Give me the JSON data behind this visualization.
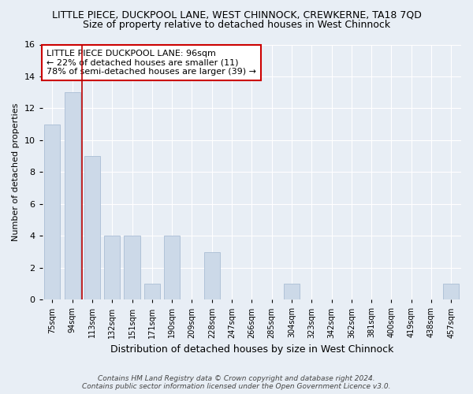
{
  "title": "LITTLE PIECE, DUCKPOOL LANE, WEST CHINNOCK, CREWKERNE, TA18 7QD",
  "subtitle": "Size of property relative to detached houses in West Chinnock",
  "xlabel": "Distribution of detached houses by size in West Chinnock",
  "ylabel": "Number of detached properties",
  "categories": [
    "75sqm",
    "94sqm",
    "113sqm",
    "132sqm",
    "151sqm",
    "171sqm",
    "190sqm",
    "209sqm",
    "228sqm",
    "247sqm",
    "266sqm",
    "285sqm",
    "304sqm",
    "323sqm",
    "342sqm",
    "362sqm",
    "381sqm",
    "400sqm",
    "419sqm",
    "438sqm",
    "457sqm"
  ],
  "values": [
    11,
    13,
    9,
    4,
    4,
    1,
    4,
    0,
    3,
    0,
    0,
    0,
    1,
    0,
    0,
    0,
    0,
    0,
    0,
    0,
    1
  ],
  "bar_color": "#ccd9e8",
  "bar_edge_color": "#aabdd4",
  "vline_x_idx": 1.5,
  "vline_color": "#bb0000",
  "annotation_text": "LITTLE PIECE DUCKPOOL LANE: 96sqm\n← 22% of detached houses are smaller (11)\n78% of semi-detached houses are larger (39) →",
  "annotation_box_color": "#ffffff",
  "annotation_box_edge_color": "#cc0000",
  "ylim": [
    0,
    16
  ],
  "yticks": [
    0,
    2,
    4,
    6,
    8,
    10,
    12,
    14,
    16
  ],
  "footer": "Contains HM Land Registry data © Crown copyright and database right 2024.\nContains public sector information licensed under the Open Government Licence v3.0.",
  "bg_color": "#e8eef5",
  "plot_bg_color": "#e8eef5",
  "title_fontsize": 9,
  "subtitle_fontsize": 9,
  "annotation_fontsize": 8
}
